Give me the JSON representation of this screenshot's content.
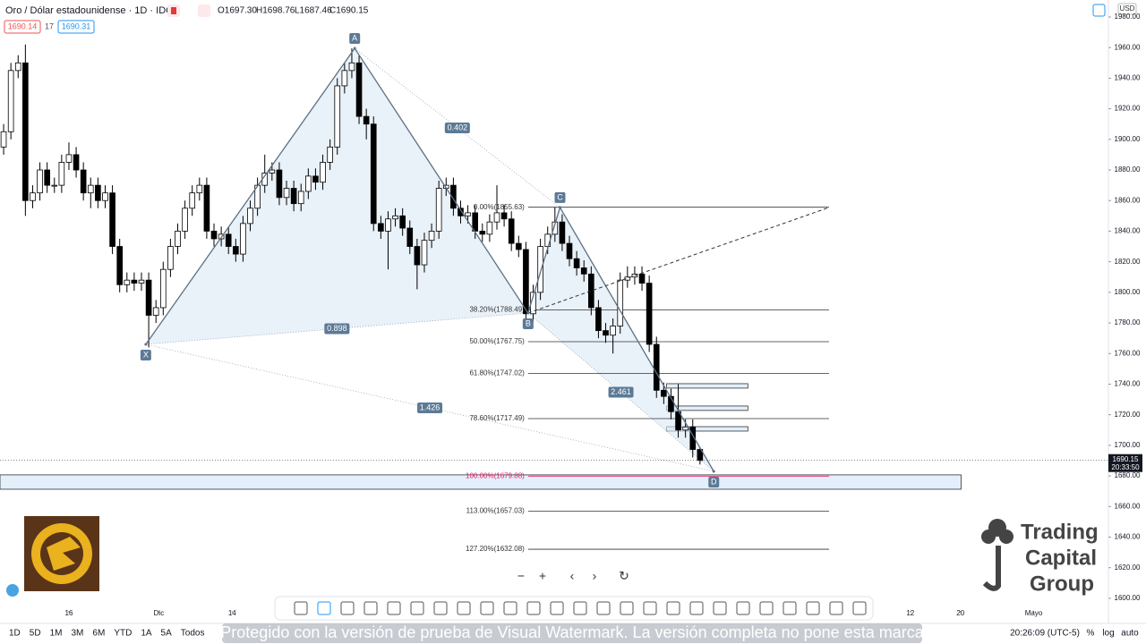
{
  "header": {
    "symbol": "Oro / Dólar estadounidense · 1D · IDC",
    "open": "O1697.30",
    "high": "H1698.76",
    "low": "L1687.46",
    "close": "C1690.15",
    "bid": "1690.14",
    "spread": "17",
    "ask": "1690.31"
  },
  "chart_data": {
    "type": "candlestick",
    "currency": "USD",
    "open": [
      1895,
      1905,
      1945,
      1950,
      1860,
      1865,
      1880,
      1870,
      1870,
      1885,
      1890,
      1880,
      1865,
      1870,
      1860,
      1865,
      1830,
      1805,
      1808,
      1806,
      1808,
      1785,
      1790,
      1815,
      1830,
      1840,
      1855,
      1865,
      1870,
      1840,
      1835,
      1838,
      1830,
      1825,
      1845,
      1855,
      1870,
      1878,
      1880,
      1862,
      1868,
      1858,
      1866,
      1876,
      1872,
      1885,
      1895,
      1935,
      1945,
      1950,
      1915,
      1910,
      1845,
      1840,
      1848,
      1850,
      1842,
      1830,
      1818,
      1834,
      1840,
      1868,
      1870,
      1855,
      1850,
      1852,
      1840,
      1838,
      1846,
      1852,
      1848,
      1832,
      1828,
      1786,
      1800,
      1830,
      1838,
      1846,
      1832,
      1822,
      1816,
      1812,
      1790,
      1775,
      1772,
      1778,
      1808,
      1810,
      1812,
      1806,
      1766,
      1736,
      1732,
      1722,
      1710,
      1712,
      1697.3
    ],
    "high": [
      1910,
      1950,
      1955,
      1962,
      1870,
      1885,
      1885,
      1875,
      1890,
      1898,
      1895,
      1885,
      1875,
      1875,
      1870,
      1870,
      1835,
      1813,
      1813,
      1813,
      1813,
      1795,
      1820,
      1835,
      1845,
      1860,
      1870,
      1875,
      1875,
      1845,
      1843,
      1843,
      1835,
      1850,
      1860,
      1875,
      1890,
      1885,
      1885,
      1873,
      1873,
      1871,
      1881,
      1881,
      1890,
      1900,
      1940,
      1950,
      1959.5,
      1955,
      1920,
      1915,
      1850,
      1853,
      1855,
      1855,
      1847,
      1835,
      1839,
      1845,
      1873,
      1875,
      1875,
      1860,
      1857,
      1857,
      1845,
      1851,
      1870,
      1857,
      1853,
      1837,
      1833,
      1805,
      1835,
      1843,
      1855.6,
      1851,
      1837,
      1827,
      1821,
      1817,
      1795,
      1780,
      1783,
      1813,
      1817,
      1817,
      1817,
      1811,
      1771,
      1741,
      1737,
      1740,
      1717,
      1717,
      1698.76
    ],
    "low": [
      1890,
      1900,
      1940,
      1850,
      1855,
      1860,
      1865,
      1865,
      1865,
      1880,
      1875,
      1860,
      1855,
      1855,
      1855,
      1825,
      1800,
      1800,
      1801,
      1801,
      1764,
      1780,
      1785,
      1810,
      1825,
      1835,
      1850,
      1860,
      1835,
      1830,
      1830,
      1825,
      1820,
      1820,
      1840,
      1850,
      1865,
      1873,
      1857,
      1857,
      1853,
      1853,
      1861,
      1867,
      1867,
      1880,
      1890,
      1930,
      1940,
      1910,
      1900,
      1840,
      1835,
      1815,
      1843,
      1837,
      1825,
      1802,
      1813,
      1829,
      1835,
      1863,
      1850,
      1845,
      1845,
      1835,
      1833,
      1833,
      1841,
      1843,
      1827,
      1823,
      1781,
      1781,
      1795,
      1825,
      1833,
      1827,
      1817,
      1811,
      1807,
      1785,
      1770,
      1767,
      1760,
      1773,
      1803,
      1805,
      1801,
      1761,
      1731,
      1727,
      1717,
      1705,
      1705,
      1692,
      1687.46
    ],
    "close": [
      1905,
      1945,
      1950,
      1860,
      1865,
      1880,
      1870,
      1870,
      1885,
      1890,
      1880,
      1865,
      1870,
      1860,
      1865,
      1830,
      1805,
      1808,
      1806,
      1808,
      1785,
      1790,
      1815,
      1830,
      1840,
      1855,
      1865,
      1870,
      1840,
      1835,
      1838,
      1830,
      1825,
      1845,
      1855,
      1870,
      1878,
      1880,
      1862,
      1868,
      1858,
      1866,
      1876,
      1872,
      1885,
      1895,
      1935,
      1945,
      1950,
      1915,
      1910,
      1845,
      1840,
      1848,
      1850,
      1842,
      1830,
      1818,
      1834,
      1840,
      1868,
      1870,
      1855,
      1850,
      1852,
      1840,
      1838,
      1846,
      1852,
      1848,
      1832,
      1828,
      1786,
      1800,
      1830,
      1838,
      1846,
      1832,
      1822,
      1816,
      1812,
      1790,
      1775,
      1772,
      1778,
      1808,
      1810,
      1812,
      1806,
      1766,
      1736,
      1732,
      1722,
      1710,
      1712,
      1697.3,
      1690.15
    ],
    "up_color": "#ffffff",
    "down_color": "#000000",
    "xlim": [
      -0.5,
      152.3
    ],
    "xticks": [
      {
        "value": 9,
        "label": "16"
      },
      {
        "value": 21.4,
        "label": "Dic"
      },
      {
        "value": 31.5,
        "label": "14"
      },
      {
        "value": 125,
        "label": "12"
      },
      {
        "value": 131.9,
        "label": "20"
      },
      {
        "value": 142,
        "label": "Mayo"
      }
    ],
    "ylim": [
      1590.6,
      1991.1
    ],
    "yticks": [
      {
        "value": 1600,
        "label": "1600.00"
      },
      {
        "value": 1620,
        "label": "1620.00"
      },
      {
        "value": 1640,
        "label": "1640.00"
      },
      {
        "value": 1660,
        "label": "1660.00"
      },
      {
        "value": 1680,
        "label": "1680.00"
      },
      {
        "value": 1700,
        "label": "1700.00"
      },
      {
        "value": 1720,
        "label": "1720.00"
      },
      {
        "value": 1740,
        "label": "1740.00"
      },
      {
        "value": 1760,
        "label": "1760.00"
      },
      {
        "value": 1780,
        "label": "1780.00"
      },
      {
        "value": 1800,
        "label": "1800.00"
      },
      {
        "value": 1820,
        "label": "1820.00"
      },
      {
        "value": 1840,
        "label": "1840.00"
      },
      {
        "value": 1860,
        "label": "1860.00"
      },
      {
        "value": 1880,
        "label": "1880.00"
      },
      {
        "value": 1900,
        "label": "1900.00"
      },
      {
        "value": 1920,
        "label": "1920.00"
      },
      {
        "value": 1940,
        "label": "1940.00"
      },
      {
        "value": 1960,
        "label": "1960.00"
      },
      {
        "value": 1980,
        "label": "1980.00"
      }
    ],
    "last_price": 1690.15,
    "countdown": "20:33:50",
    "pattern": {
      "points": [
        {
          "label": "X",
          "x": 19.6,
          "y": 1766
        },
        {
          "label": "A",
          "x": 48.4,
          "y": 1959.5
        },
        {
          "label": "B",
          "x": 72.3,
          "y": 1786.5
        },
        {
          "label": "C",
          "x": 76.7,
          "y": 1855.5
        },
        {
          "label": "D",
          "x": 97.9,
          "y": 1683
        }
      ],
      "ratios": [
        {
          "value": 0.898,
          "from": 0,
          "to": 2
        },
        {
          "value": 0.402,
          "from": 1,
          "to": 3
        },
        {
          "value": 1.426,
          "from": 0,
          "to": 4
        },
        {
          "value": 2.461,
          "from": 2,
          "to": 4
        }
      ],
      "trendline": {
        "x": [
          72.3,
          113.8
        ],
        "y": [
          1786.5,
          1855.5
        ]
      }
    },
    "fib_levels": [
      {
        "label": "0.00%(1855.63)",
        "price": 1855.63,
        "color": "#333333"
      },
      {
        "label": "38.20%(1788.49)",
        "price": 1788.49,
        "color": "#333333"
      },
      {
        "label": "50.00%(1767.75)",
        "price": 1767.75,
        "color": "#333333"
      },
      {
        "label": "61.80%(1747.02)",
        "price": 1747.02,
        "color": "#333333"
      },
      {
        "label": "78.60%(1717.49)",
        "price": 1717.49,
        "color": "#333333"
      },
      {
        "label": "100.00%(1679.88)",
        "price": 1679.88,
        "color": "#e91e63"
      },
      {
        "label": "113.00%(1657.03)",
        "price": 1657.03,
        "color": "#333333"
      },
      {
        "label": "127.20%(1632.08)",
        "price": 1632.08,
        "color": "#333333"
      }
    ],
    "zones": [
      {
        "x": [
          -0.5,
          132
        ],
        "y": [
          1671.3,
          1680.7
        ]
      },
      {
        "x": [
          91.4,
          102.6
        ],
        "y": [
          1737.4,
          1740.3
        ]
      },
      {
        "x": [
          91.4,
          102.6
        ],
        "y": [
          1722.8,
          1725.7
        ]
      },
      {
        "x": [
          91.4,
          102.6
        ],
        "y": [
          1709.3,
          1712.2
        ]
      }
    ]
  },
  "zoom_controls": [
    "−",
    "+",
    "‹",
    "›",
    "↻"
  ],
  "timeframes": [
    "1D",
    "5D",
    "1M",
    "3M",
    "6M",
    "YTD",
    "1A",
    "5A",
    "Todos"
  ],
  "watermark": "Protegido con la versión de prueba de Visual Watermark. La versión completa no pone esta marca",
  "clock": "20:26:09 (UTC-5)",
  "scale_options": [
    "%",
    "log",
    "auto"
  ],
  "logo": [
    "Trading",
    "Capital",
    "Group"
  ]
}
